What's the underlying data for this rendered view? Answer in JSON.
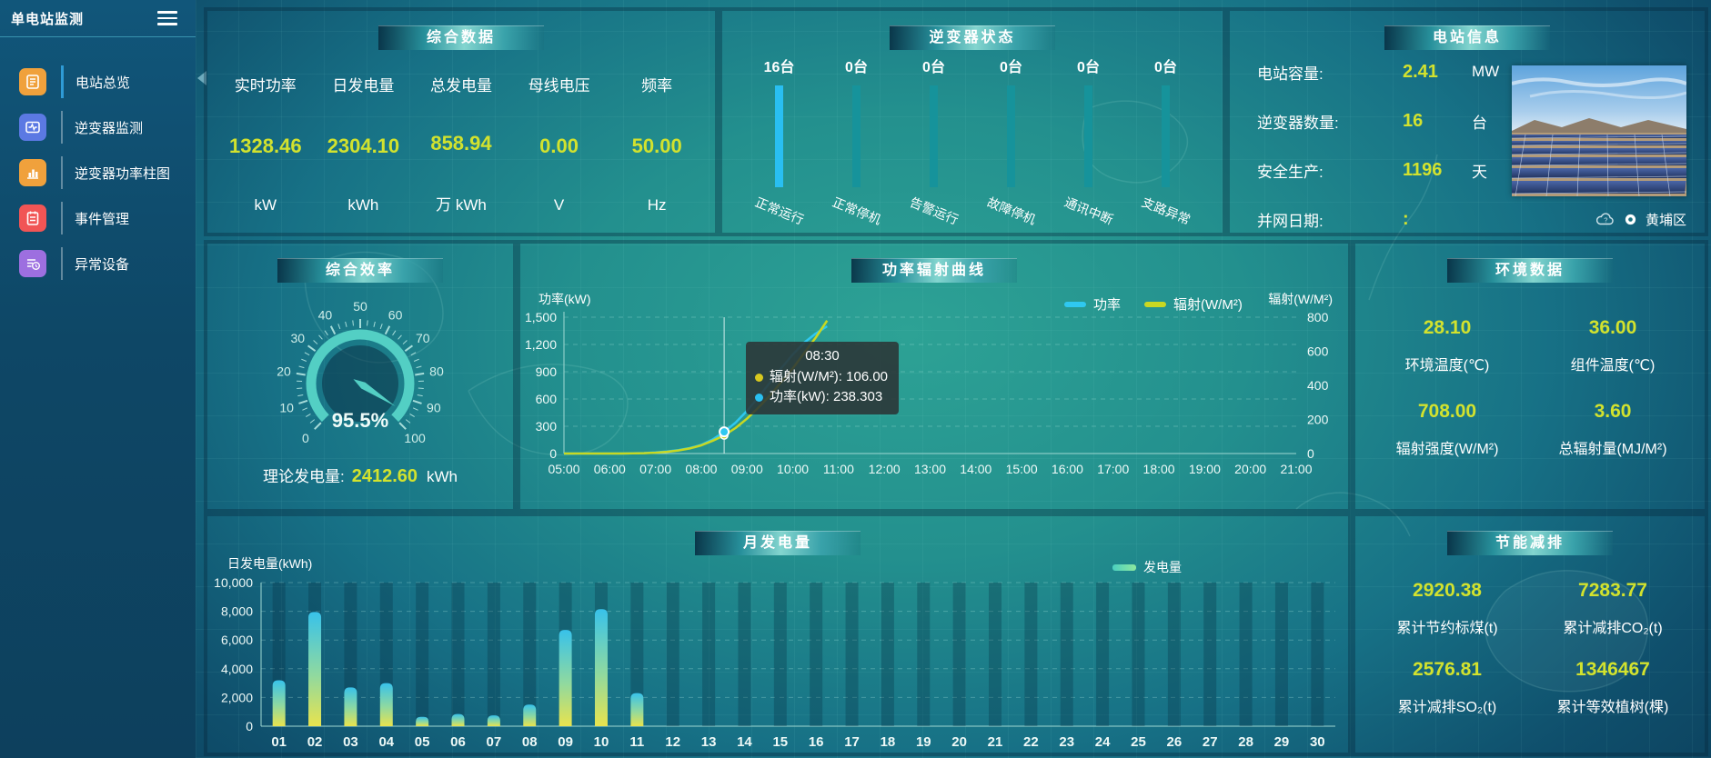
{
  "app": {
    "title": "单电站监测"
  },
  "sidebar": {
    "items": [
      {
        "label": "电站总览",
        "active": true,
        "color": "#f0a13c"
      },
      {
        "label": "逆变器监测",
        "active": false,
        "color": "#5b79e3"
      },
      {
        "label": "逆变器功率柱图",
        "active": false,
        "color": "#f0a13c"
      },
      {
        "label": "事件管理",
        "active": false,
        "color": "#f15555"
      },
      {
        "label": "异常设备",
        "active": false,
        "color": "#9d6fe0"
      }
    ]
  },
  "panels": {
    "summary": {
      "title": "综合数据",
      "stats": [
        {
          "label": "实时功率",
          "value": "1328.46",
          "unit": "kW"
        },
        {
          "label": "日发电量",
          "value": "2304.10",
          "unit": "kWh"
        },
        {
          "label": "总发电量",
          "value": "858.94",
          "unit": "万 kWh"
        },
        {
          "label": "母线电压",
          "value": "0.00",
          "unit": "V"
        },
        {
          "label": "频率",
          "value": "50.00",
          "unit": "Hz"
        }
      ]
    },
    "inverter_status": {
      "title": "逆变器状态",
      "statuses": [
        {
          "count": "16台",
          "label": "正常运行",
          "highlight": true
        },
        {
          "count": "0台",
          "label": "正常停机",
          "highlight": false
        },
        {
          "count": "0台",
          "label": "告警运行",
          "highlight": false
        },
        {
          "count": "0台",
          "label": "故障停机",
          "highlight": false
        },
        {
          "count": "0台",
          "label": "通讯中断",
          "highlight": false
        },
        {
          "count": "0台",
          "label": "支路异常",
          "highlight": false
        }
      ]
    },
    "station_info": {
      "title": "电站信息",
      "rows": [
        {
          "label": "电站容量:",
          "value": "2.41",
          "unit": "MW"
        },
        {
          "label": "逆变器数量:",
          "value": "16",
          "unit": "台"
        },
        {
          "label": "安全生产:",
          "value": "1196",
          "unit": "天"
        },
        {
          "label": "并网日期:",
          "value": ":",
          "unit": ""
        }
      ],
      "location": "黄埔区"
    },
    "efficiency": {
      "title": "综合效率",
      "gauge_value": "95.5%",
      "footer": {
        "label": "理论发电量:",
        "value": "2412.60",
        "unit": "kWh"
      }
    },
    "power_curve": {
      "title": "功率辐射曲线",
      "tooltip": {
        "time": "08:30",
        "rows": [
          {
            "color": "#d8c81f",
            "text": "辐射(W/M²): 106.00"
          },
          {
            "color": "#29c0f0",
            "text": "功率(kW): 238.303"
          }
        ]
      }
    },
    "environment": {
      "title": "环境数据",
      "stats": [
        {
          "value": "28.10",
          "label": "环境温度(℃)"
        },
        {
          "value": "36.00",
          "label": "组件温度(℃)"
        },
        {
          "value": "708.00",
          "label": "辐射强度(W/M²)"
        },
        {
          "value": "3.60",
          "label": "总辐射量(MJ/M²)"
        }
      ]
    },
    "monthly": {
      "title": "月发电量"
    },
    "savings": {
      "title": "节能减排",
      "stats": [
        {
          "value": "2920.38",
          "label": "累计节约标煤(t)"
        },
        {
          "value": "7283.77",
          "label": "累计减排CO₂(t)"
        },
        {
          "value": "2576.81",
          "label": "累计减排SO₂(t)"
        },
        {
          "value": "1346467",
          "label": "累计等效植树(棵)"
        }
      ]
    }
  },
  "chart_data": [
    {
      "id": "inverter-status",
      "type": "bar",
      "categories": [
        "正常运行",
        "正常停机",
        "告警运行",
        "故障停机",
        "通讯中断",
        "支路异常"
      ],
      "values": [
        16,
        0,
        0,
        0,
        0,
        0
      ],
      "unit": "台",
      "bar_color_active": "#29bff2",
      "bar_color_track": "#16939b"
    },
    {
      "id": "efficiency-gauge",
      "type": "gauge",
      "min": 0,
      "max": 100,
      "tick_step": 10,
      "value": 95.5,
      "display": "95.5%",
      "color": "#53cfc4"
    },
    {
      "id": "power-radiation",
      "type": "line",
      "x": [
        5,
        5.25,
        5.5,
        5.75,
        6,
        6.25,
        6.5,
        6.75,
        7,
        7.25,
        7.5,
        7.75,
        8,
        8.25,
        8.5,
        8.75,
        9,
        9.25,
        9.5,
        9.75,
        10,
        10.25,
        10.5,
        10.75
      ],
      "x_axis_labels": [
        "05:00",
        "06:00",
        "07:00",
        "08:00",
        "09:00",
        "10:00",
        "11:00",
        "12:00",
        "13:00",
        "14:00",
        "15:00",
        "16:00",
        "17:00",
        "18:00",
        "19:00",
        "20:00",
        "21:00"
      ],
      "xlim": [
        5,
        21
      ],
      "series": [
        {
          "name": "功率",
          "color": "#2fc8f0",
          "axis": "left",
          "values": [
            0,
            0,
            0,
            0,
            0,
            0,
            2,
            5,
            12,
            22,
            38,
            60,
            95,
            155,
            238.303,
            340,
            470,
            620,
            780,
            940,
            1090,
            1220,
            1320,
            1400
          ]
        },
        {
          "name": "辐射(W/M²)",
          "color": "#c8d822",
          "axis": "right",
          "values": [
            0,
            0,
            0,
            0,
            0,
            0,
            1,
            2,
            5,
            10,
            18,
            30,
            48,
            75,
            106,
            150,
            205,
            270,
            340,
            420,
            500,
            590,
            680,
            780
          ]
        }
      ],
      "left_axis": {
        "title": "功率(kW)",
        "ticks": [
          0,
          300,
          600,
          900,
          1200,
          1500
        ],
        "lim": [
          0,
          1500
        ]
      },
      "right_axis": {
        "title": "辐射(W/M²)",
        "ticks": [
          0,
          200,
          400,
          600,
          800
        ],
        "lim": [
          0,
          800
        ]
      },
      "hover": {
        "x": 8.5,
        "label": "08:30",
        "power": 238.303,
        "radiation": 106.0
      }
    },
    {
      "id": "monthly-energy",
      "type": "bar",
      "categories": [
        "01",
        "02",
        "03",
        "04",
        "05",
        "06",
        "07",
        "08",
        "09",
        "10",
        "11",
        "12",
        "13",
        "14",
        "15",
        "16",
        "17",
        "18",
        "19",
        "20",
        "21",
        "22",
        "23",
        "24",
        "25",
        "26",
        "27",
        "28",
        "29",
        "30"
      ],
      "values": [
        3200,
        7950,
        2700,
        3000,
        650,
        850,
        750,
        1500,
        6700,
        8150,
        2300,
        0,
        0,
        0,
        0,
        0,
        0,
        0,
        0,
        0,
        0,
        0,
        0,
        0,
        0,
        0,
        0,
        0,
        0,
        0
      ],
      "y_axis": {
        "title": "日发电量(kWh)",
        "ticks": [
          0,
          2000,
          4000,
          6000,
          8000,
          10000
        ],
        "lim": [
          0,
          10000
        ]
      },
      "legend": [
        {
          "name": "发电量",
          "color": "#57d6a4"
        }
      ]
    }
  ]
}
